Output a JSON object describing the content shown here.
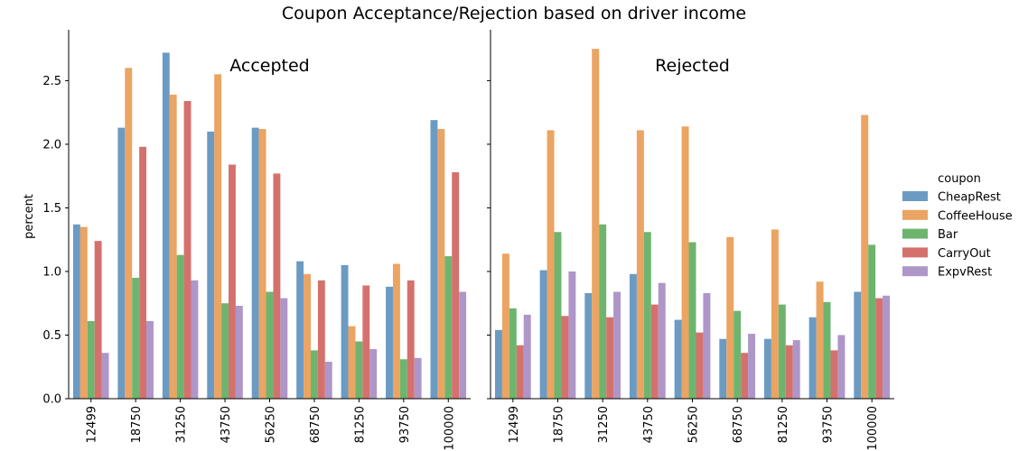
{
  "chart_data": {
    "type": "bar",
    "title": "Coupon Acceptance/Rejection based on driver income",
    "ylabel": "percent",
    "xlabel": "",
    "ylim": [
      0,
      2.9
    ],
    "yticks": [
      "0.0",
      "0.5",
      "1.0",
      "1.5",
      "2.0",
      "2.5"
    ],
    "categories": [
      "12499",
      "18750",
      "31250",
      "43750",
      "56250",
      "68750",
      "81250",
      "93750",
      "100000"
    ],
    "legend": {
      "title": "coupon",
      "placement": "right"
    },
    "colors": [
      "#6b9bc3",
      "#eba461",
      "#6db56e",
      "#d5716d",
      "#ae96c8"
    ],
    "panels": [
      {
        "title": "Accepted",
        "series": [
          {
            "name": "CheapRest",
            "values": [
              1.37,
              2.13,
              2.72,
              2.1,
              2.13,
              1.08,
              1.05,
              0.88,
              2.19
            ]
          },
          {
            "name": "CoffeeHouse",
            "values": [
              1.35,
              2.6,
              2.39,
              2.55,
              2.12,
              0.98,
              0.57,
              1.06,
              2.12
            ]
          },
          {
            "name": "Bar",
            "values": [
              0.61,
              0.95,
              1.13,
              0.75,
              0.84,
              0.38,
              0.45,
              0.31,
              1.12
            ]
          },
          {
            "name": "CarryOut",
            "values": [
              1.24,
              1.98,
              2.34,
              1.84,
              1.77,
              0.93,
              0.89,
              0.93,
              1.78
            ]
          },
          {
            "name": "ExpvRest",
            "values": [
              0.36,
              0.61,
              0.93,
              0.73,
              0.79,
              0.29,
              0.39,
              0.32,
              0.84
            ]
          }
        ]
      },
      {
        "title": "Rejected",
        "series": [
          {
            "name": "CheapRest",
            "values": [
              0.54,
              1.01,
              0.83,
              0.98,
              0.62,
              0.47,
              0.47,
              0.64,
              0.84
            ]
          },
          {
            "name": "CoffeeHouse",
            "values": [
              1.14,
              2.11,
              2.75,
              2.11,
              2.14,
              1.27,
              1.33,
              0.92,
              2.23
            ]
          },
          {
            "name": "Bar",
            "values": [
              0.71,
              1.31,
              1.37,
              1.31,
              1.23,
              0.69,
              0.74,
              0.76,
              1.21
            ]
          },
          {
            "name": "CarryOut",
            "values": [
              0.42,
              0.65,
              0.64,
              0.74,
              0.52,
              0.36,
              0.42,
              0.38,
              0.79
            ]
          },
          {
            "name": "ExpvRest",
            "values": [
              0.66,
              1.0,
              0.84,
              0.91,
              0.83,
              0.51,
              0.46,
              0.5,
              0.81
            ]
          }
        ]
      }
    ]
  }
}
